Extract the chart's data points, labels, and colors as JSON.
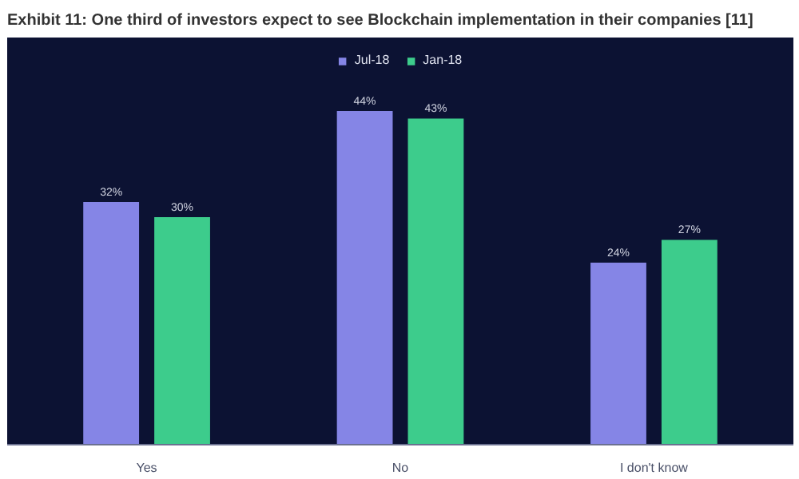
{
  "chart_data": {
    "type": "bar",
    "title": "Exhibit 11: One third of investors expect to see Blockchain implementation in their companies [11]",
    "categories": [
      "Yes",
      "No",
      "I don't know"
    ],
    "series": [
      {
        "name": "Jul-18",
        "color": "#8585e6",
        "values": [
          32,
          44,
          24
        ],
        "value_labels": [
          "32%",
          "44%",
          "24%"
        ]
      },
      {
        "name": "Jan-18",
        "color": "#3dcc8c",
        "values": [
          30,
          43,
          27
        ],
        "value_labels": [
          "30%",
          "43%",
          "27%"
        ]
      }
    ],
    "legend": "top",
    "grid": false
  }
}
